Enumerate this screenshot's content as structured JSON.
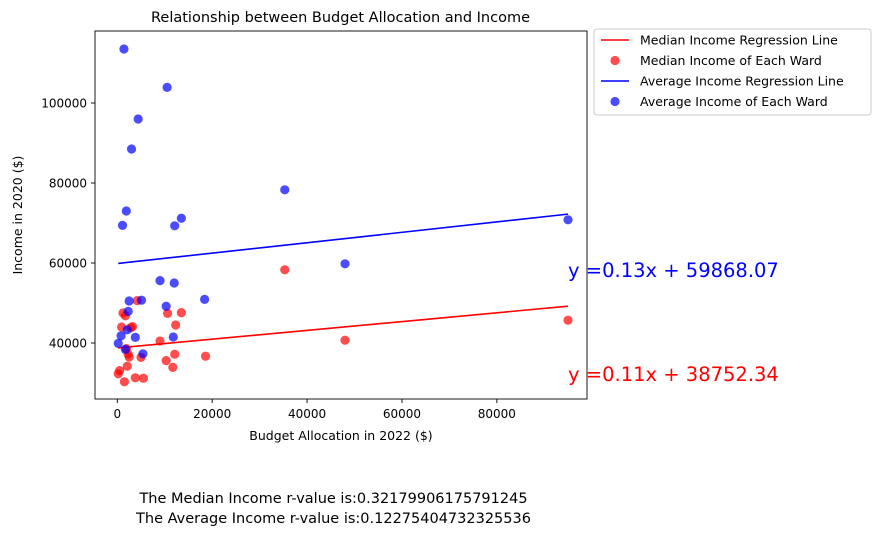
{
  "chart_data": {
    "type": "scatter",
    "title": "Relationship between Budget Allocation and Income",
    "xlabel": "Budget Allocation in 2022 ($)",
    "ylabel": "Income in 2020 ($)",
    "xlim": [
      -4700,
      99000
    ],
    "ylim": [
      26000,
      118000
    ],
    "x_ticks": [
      0,
      20000,
      40000,
      60000,
      80000
    ],
    "y_ticks": [
      40000,
      60000,
      80000,
      100000
    ],
    "grid": false,
    "legend_position": "outside-top-right",
    "colors": {
      "median": "#ff0000",
      "average": "#0000ff"
    },
    "series": [
      {
        "name": "Median Income of Each Ward",
        "kind": "scatter",
        "color": "#ff0000",
        "points": [
          [
            200,
            32300
          ],
          [
            500,
            33100
          ],
          [
            900,
            44000
          ],
          [
            1200,
            47500
          ],
          [
            1500,
            30300
          ],
          [
            1700,
            46800
          ],
          [
            1900,
            38600
          ],
          [
            2100,
            34200
          ],
          [
            2300,
            37200
          ],
          [
            2500,
            36500
          ],
          [
            2800,
            43800
          ],
          [
            3200,
            44100
          ],
          [
            3800,
            31300
          ],
          [
            4200,
            50600
          ],
          [
            5000,
            36400
          ],
          [
            5500,
            31200
          ],
          [
            9000,
            40500
          ],
          [
            10300,
            35600
          ],
          [
            10600,
            47400
          ],
          [
            11700,
            33900
          ],
          [
            12100,
            37200
          ],
          [
            12300,
            44500
          ],
          [
            13500,
            47600
          ],
          [
            18600,
            36700
          ],
          [
            35300,
            58300
          ],
          [
            48000,
            40700
          ],
          [
            95000,
            45700
          ]
        ]
      },
      {
        "name": "Average Income of Each Ward",
        "kind": "scatter",
        "color": "#0000ff",
        "points": [
          [
            200,
            39900
          ],
          [
            800,
            41800
          ],
          [
            1100,
            69400
          ],
          [
            1400,
            113500
          ],
          [
            1700,
            38400
          ],
          [
            1900,
            73000
          ],
          [
            2100,
            43300
          ],
          [
            2300,
            47900
          ],
          [
            2500,
            50500
          ],
          [
            3000,
            88500
          ],
          [
            3800,
            41400
          ],
          [
            4400,
            96000
          ],
          [
            5100,
            50700
          ],
          [
            5400,
            37300
          ],
          [
            9000,
            55600
          ],
          [
            10300,
            49200
          ],
          [
            10500,
            103900
          ],
          [
            11800,
            41500
          ],
          [
            12000,
            55000
          ],
          [
            12100,
            69300
          ],
          [
            13500,
            71200
          ],
          [
            18400,
            50900
          ],
          [
            35300,
            78300
          ],
          [
            48000,
            59800
          ],
          [
            95000,
            70800
          ]
        ]
      },
      {
        "name": "Median Income Regression Line",
        "kind": "line",
        "color": "#ff0000",
        "slope": 0.11,
        "intercept": 38752.34,
        "x_range": [
          200,
          95000
        ]
      },
      {
        "name": "Average Income Regression Line",
        "kind": "line",
        "color": "#0000ff",
        "slope": 0.13,
        "intercept": 59868.07,
        "x_range": [
          200,
          95000
        ]
      }
    ],
    "annotations": [
      {
        "text": "y =0.13x + 59868.07",
        "x": 95000,
        "y": 56500,
        "color": "#0000ff"
      },
      {
        "text": "y =0.11x + 38752.34",
        "x": 95000,
        "y": 30500,
        "color": "#ff0000"
      }
    ],
    "legend": [
      {
        "label": "Median Income Regression Line",
        "kind": "line",
        "color": "#ff0000"
      },
      {
        "label": "Median Income of Each Ward",
        "kind": "marker",
        "color": "#ff0000"
      },
      {
        "label": "Average Income Regression Line",
        "kind": "line",
        "color": "#0000ff"
      },
      {
        "label": "Average Income of Each Ward",
        "kind": "marker",
        "color": "#0000ff"
      }
    ]
  },
  "stats": {
    "median_rvalue_text": "The Median Income r-value is:0.32179906175791245",
    "average_rvalue_text": "The Average Income r-value is:0.12275404732325536"
  }
}
